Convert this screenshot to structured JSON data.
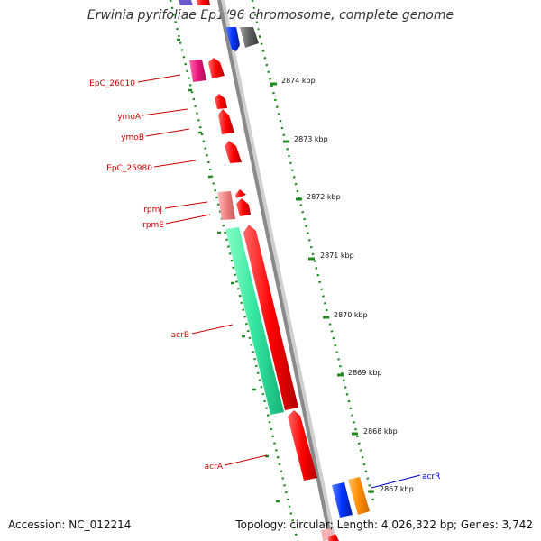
{
  "title": "Erwinia pyrifoliae Ep1/96 chromosome, complete genome",
  "accession": "Accession: NC_012214",
  "topology": "Topology: circular; Length: 4,026,322 bp; Genes: 3,742",
  "ticks": [
    "2874 kbp",
    "2873 kbp",
    "2872 kbp",
    "2871 kbp",
    "2870 kbp",
    "2869 kbp",
    "2868 kbp",
    "2867 kbp"
  ],
  "genes": [
    {
      "name": "EpC_26010",
      "color": "#cc0000"
    },
    {
      "name": "ymoA",
      "color": "#cc0000"
    },
    {
      "name": "ymoB",
      "color": "#cc0000"
    },
    {
      "name": "EpC_25980",
      "color": "#cc0000"
    },
    {
      "name": "rpmJ",
      "color": "#cc0000"
    },
    {
      "name": "rpmE",
      "color": "#cc0000"
    },
    {
      "name": "acrB",
      "color": "#cc0000"
    },
    {
      "name": "acrA",
      "color": "#cc0000"
    },
    {
      "name": "acrR",
      "color": "#0000cc"
    }
  ],
  "colors": {
    "backbone": "#8a8a8a",
    "dotted_ring": "#228b22",
    "forward_gene": "#ff0000",
    "acrB_band": "#33e6a0",
    "pink_feature": "#e8157a",
    "light_red_feature": "#f08080",
    "blue_feature": "#0033ff",
    "orange_feature": "#ff8c00",
    "gray_feature": "#606060",
    "purple_feature": "#6a5acd"
  }
}
